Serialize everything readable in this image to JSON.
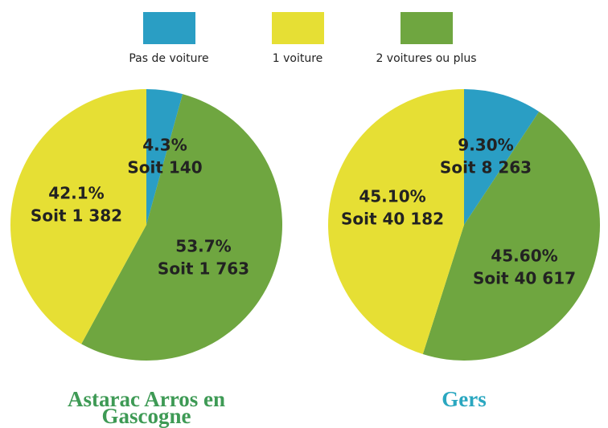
{
  "chart_data": [
    {
      "type": "pie",
      "title": "Astarac Arros en Gascogne",
      "title_color": "#3e9a55",
      "categories": [
        "Pas de voiture",
        "2 voitures ou plus",
        "1 voiture"
      ],
      "colors": [
        "#2a9ec4",
        "#6fa640",
        "#e6df34"
      ],
      "values": [
        4.3,
        53.7,
        42.1
      ],
      "value_labels": [
        "4.3%",
        "53.7%",
        "42.1%"
      ],
      "counts": [
        140,
        1763,
        1382
      ],
      "count_labels": [
        "Soit 140",
        "Soit 1 763",
        "Soit 1 382"
      ]
    },
    {
      "type": "pie",
      "title": "Gers",
      "title_color": "#2aa7c0",
      "categories": [
        "Pas de voiture",
        "2 voitures ou plus",
        "1 voiture"
      ],
      "colors": [
        "#2a9ec4",
        "#6fa640",
        "#e6df34"
      ],
      "values": [
        9.3,
        45.6,
        45.1
      ],
      "value_labels": [
        "9.30%",
        "45.60%",
        "45.10%"
      ],
      "counts": [
        8263,
        40617,
        40182
      ],
      "count_labels": [
        "Soit 8 263",
        "Soit 40 617",
        "Soit 40 182"
      ]
    }
  ]
}
